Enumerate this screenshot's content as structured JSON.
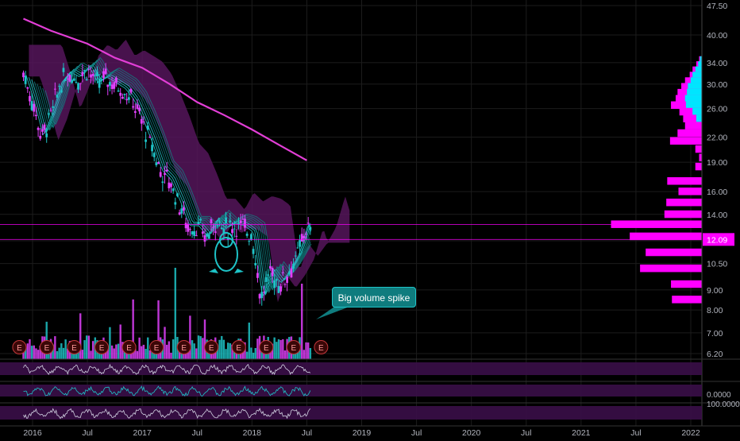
{
  "chart_data": {
    "type": "candlestick",
    "price_scale": "log",
    "ylim": [
      6.2,
      47.5
    ],
    "y_ticks": [
      "47.50",
      "40.00",
      "34.00",
      "30.00",
      "26.00",
      "22.00",
      "19.00",
      "16.00",
      "14.00",
      "12.00",
      "10.50",
      "9.00",
      "8.00",
      "7.00",
      "6.20"
    ],
    "x_ticks": [
      "2016",
      "Jul",
      "2017",
      "Jul",
      "2018",
      "Jul",
      "2019",
      "Jul",
      "2020",
      "Jul",
      "2021",
      "Jul",
      "2022"
    ],
    "last_price_label": "12.09",
    "last_price": 12.09,
    "grid": true,
    "annotation": "Big volume spike",
    "earnings_marker": "E",
    "earnings_count": 12,
    "price_path": [
      [
        "2015-12",
        32
      ],
      [
        "2016-01",
        27
      ],
      [
        "2016-02",
        22
      ],
      [
        "2016-03",
        25
      ],
      [
        "2016-04",
        30
      ],
      [
        "2016-05",
        32
      ],
      [
        "2016-06",
        31
      ],
      [
        "2016-07",
        33
      ],
      [
        "2016-08",
        30
      ],
      [
        "2016-09",
        31
      ],
      [
        "2016-10",
        30
      ],
      [
        "2016-11",
        29
      ],
      [
        "2016-12",
        27
      ],
      [
        "2017-01",
        24
      ],
      [
        "2017-02",
        21
      ],
      [
        "2017-03",
        18
      ],
      [
        "2017-04",
        17
      ],
      [
        "2017-05",
        15
      ],
      [
        "2017-06",
        13
      ],
      [
        "2017-07",
        13
      ],
      [
        "2017-08",
        12.2
      ],
      [
        "2017-09",
        13.5
      ],
      [
        "2017-10",
        12.8
      ],
      [
        "2017-11",
        13.2
      ],
      [
        "2017-12",
        13
      ],
      [
        "2018-01",
        12.5
      ],
      [
        "2018-02",
        8.5
      ],
      [
        "2018-03",
        10
      ],
      [
        "2018-04",
        9.3
      ],
      [
        "2018-05",
        10
      ],
      [
        "2018-06",
        11
      ],
      [
        "2018-07",
        13.2
      ],
      [
        "2018-07-15",
        12.1
      ]
    ],
    "ma200_path": [
      [
        "2015-12",
        44
      ],
      [
        "2016-03",
        41
      ],
      [
        "2016-07",
        38
      ],
      [
        "2016-10",
        35
      ],
      [
        "2017-01",
        33
      ],
      [
        "2017-04",
        30
      ],
      [
        "2017-07",
        27
      ],
      [
        "2017-10",
        25
      ],
      [
        "2018-01",
        23
      ],
      [
        "2018-04",
        21
      ],
      [
        "2018-07",
        19.2
      ]
    ],
    "volume_profile": [
      {
        "price": 34.5,
        "value": 0.03,
        "hi": 0.02
      },
      {
        "price": 33.5,
        "value": 0.06,
        "hi": 0.04
      },
      {
        "price": 32.5,
        "value": 0.1,
        "hi": 0.07
      },
      {
        "price": 31.5,
        "value": 0.13,
        "hi": 0.1
      },
      {
        "price": 30.5,
        "value": 0.18,
        "hi": 0.12
      },
      {
        "price": 29.5,
        "value": 0.22,
        "hi": 0.15
      },
      {
        "price": 28.5,
        "value": 0.26,
        "hi": 0.16
      },
      {
        "price": 27.5,
        "value": 0.28,
        "hi": 0.18
      },
      {
        "price": 26.5,
        "value": 0.33,
        "hi": 0.17
      },
      {
        "price": 25.5,
        "value": 0.24,
        "hi": 0.1
      },
      {
        "price": 24.5,
        "value": 0.2,
        "hi": 0.06
      },
      {
        "price": 23.5,
        "value": 0.18,
        "hi": 0
      },
      {
        "price": 22.5,
        "value": 0.26,
        "hi": 0
      },
      {
        "price": 21.5,
        "value": 0.34,
        "hi": 0
      },
      {
        "price": 20.5,
        "value": 0.07,
        "hi": 0
      },
      {
        "price": 19.5,
        "value": 0.03,
        "hi": 0
      },
      {
        "price": 18.5,
        "value": 0.07,
        "hi": 0
      },
      {
        "price": 17.0,
        "value": 0.37,
        "hi": 0
      },
      {
        "price": 16.0,
        "value": 0.25,
        "hi": 0
      },
      {
        "price": 15.0,
        "value": 0.38,
        "hi": 0
      },
      {
        "price": 14.0,
        "value": 0.4,
        "hi": 0
      },
      {
        "price": 13.2,
        "value": 0.97,
        "hi": 0
      },
      {
        "price": 12.3,
        "value": 0.77,
        "hi": 0
      },
      {
        "price": 11.2,
        "value": 0.6,
        "hi": 0
      },
      {
        "price": 10.2,
        "value": 0.66,
        "hi": 0
      },
      {
        "price": 9.3,
        "value": 0.33,
        "hi": 0
      },
      {
        "price": 8.5,
        "value": 0.32,
        "hi": 0
      }
    ],
    "indicator_panes": [
      {
        "label": ""
      },
      {
        "label": "0.0000"
      },
      {
        "label": "100.0000"
      }
    ]
  },
  "colors": {
    "background": "#000000",
    "price_up": "#1ec3c7",
    "price_down": "#e040fb",
    "ma": "#e23ed6",
    "cloud": "#5a1660",
    "profile": "#ff00ff",
    "profile_hi": "#00e5ff",
    "axis_text": "#b2b5be",
    "grid": "#1c1c1c"
  }
}
